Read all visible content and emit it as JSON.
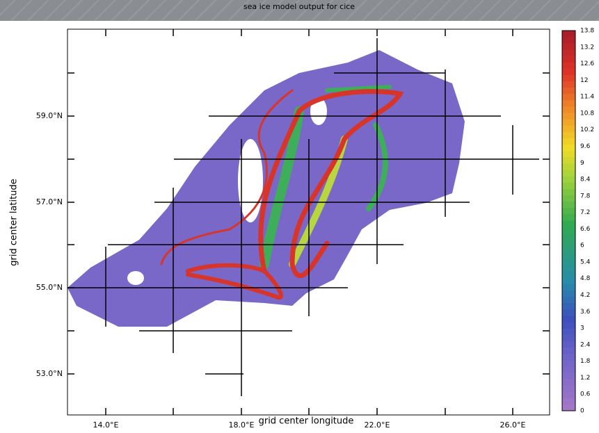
{
  "title": "sea ice model output for cice",
  "x_label": "grid center longitude",
  "y_label": "grid center latitude",
  "x_ticks": [
    "14.0°E",
    "18.0°E",
    "22.0°E",
    "26.0°E"
  ],
  "y_ticks": [
    "59.0°N",
    "57.0°N",
    "55.0°N",
    "53.0°N"
  ],
  "colorbar": {
    "labels": [
      "13.8",
      "13.2",
      "12.6",
      "12",
      "11.4",
      "10.8",
      "10.2",
      "9.6",
      "9",
      "8.4",
      "7.8",
      "7.2",
      "6.6",
      "6",
      "5.4",
      "4.8",
      "4.2",
      "3.6",
      "3",
      "2.4",
      "1.8",
      "1.2",
      "0.6",
      "0"
    ]
  }
}
